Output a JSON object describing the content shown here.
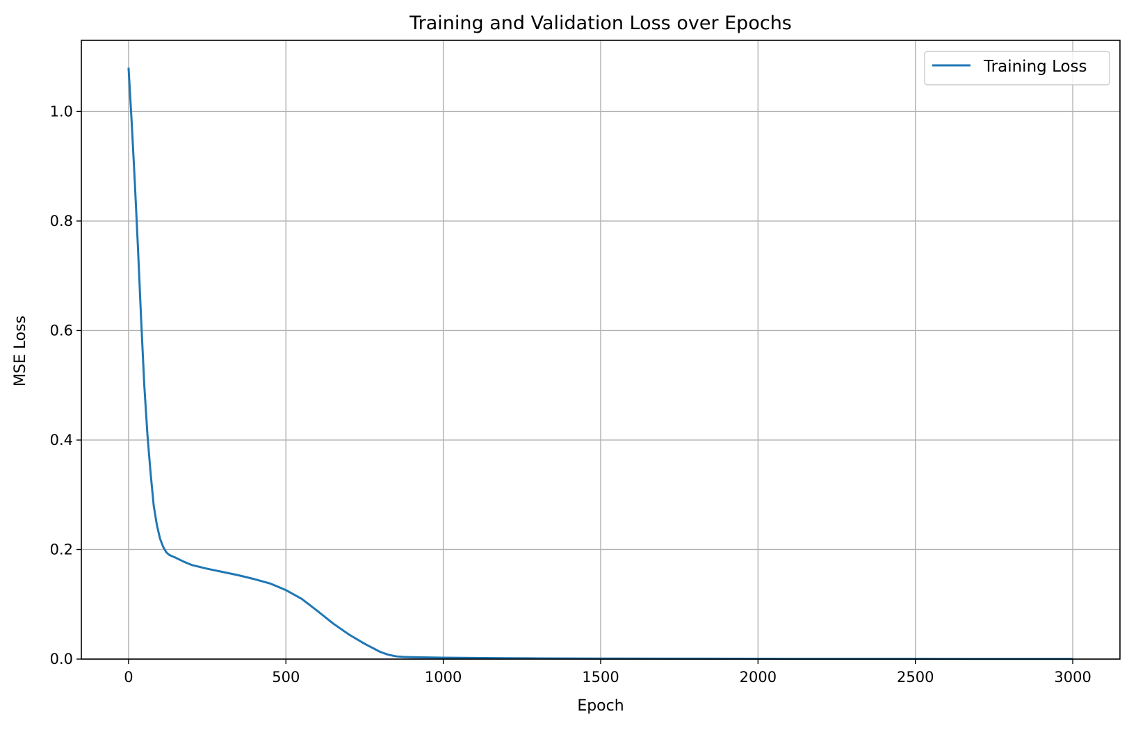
{
  "chart_data": {
    "type": "line",
    "title": "Training and Validation Loss over Epochs",
    "xlabel": "Epoch",
    "ylabel": "MSE Loss",
    "xlim": [
      -150,
      3150
    ],
    "ylim": [
      0,
      1.13
    ],
    "xticks": [
      0,
      500,
      1000,
      1500,
      2000,
      2500,
      3000
    ],
    "yticks": [
      0.0,
      0.2,
      0.4,
      0.6,
      0.8,
      1.0
    ],
    "xtick_labels": [
      "0",
      "500",
      "1000",
      "1500",
      "2000",
      "2500",
      "3000"
    ],
    "ytick_labels": [
      "0.0",
      "0.2",
      "0.4",
      "0.6",
      "0.8",
      "1.0"
    ],
    "grid": true,
    "legend_position": "top-right",
    "series": [
      {
        "name": "Training Loss",
        "color": "#1f77b4",
        "x": [
          0,
          10,
          20,
          30,
          40,
          50,
          60,
          70,
          80,
          90,
          100,
          110,
          120,
          130,
          150,
          175,
          200,
          250,
          300,
          350,
          400,
          450,
          500,
          550,
          600,
          650,
          700,
          750,
          800,
          825,
          850,
          875,
          900,
          950,
          1000,
          1100,
          1200,
          1300,
          1400,
          1500,
          1750,
          2000,
          2250,
          2500,
          2750,
          3000
        ],
        "values": [
          1.08,
          0.98,
          0.87,
          0.75,
          0.62,
          0.5,
          0.41,
          0.34,
          0.28,
          0.245,
          0.22,
          0.205,
          0.195,
          0.19,
          0.185,
          0.178,
          0.172,
          0.165,
          0.159,
          0.153,
          0.146,
          0.138,
          0.126,
          0.11,
          0.088,
          0.065,
          0.045,
          0.028,
          0.013,
          0.008,
          0.005,
          0.004,
          0.0035,
          0.003,
          0.0025,
          0.002,
          0.0016,
          0.0013,
          0.0011,
          0.001,
          0.0008,
          0.0006,
          0.0005,
          0.0004,
          0.0003,
          0.0003
        ]
      }
    ]
  }
}
